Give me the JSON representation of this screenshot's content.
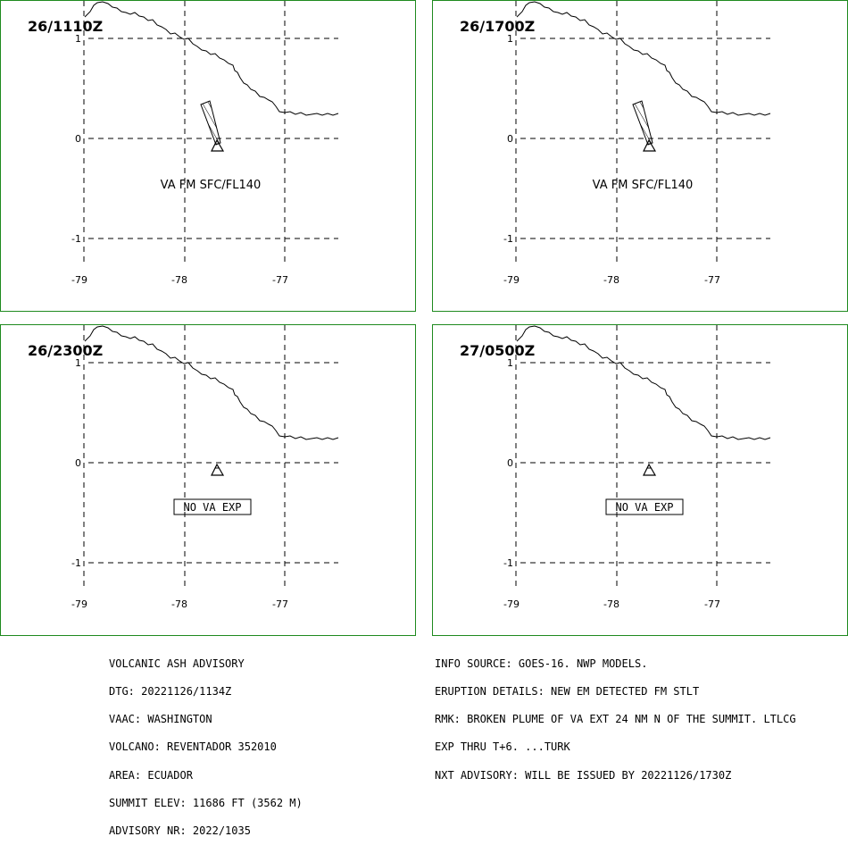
{
  "panels": [
    {
      "time": "26/1110Z",
      "lat_labels": [
        "1",
        "0",
        "-1"
      ],
      "lon_labels": [
        "-79",
        "-78",
        "-77"
      ],
      "plume": true,
      "label": "VA FM SFC/FL140",
      "boxed": false
    },
    {
      "time": "26/1700Z",
      "lat_labels": [
        "1",
        "0",
        "-1"
      ],
      "lon_labels": [
        "-79",
        "-78",
        "-77"
      ],
      "plume": true,
      "label": "VA FM SFC/FL140",
      "boxed": false
    },
    {
      "time": "26/2300Z",
      "lat_labels": [
        "1",
        "0",
        "-1"
      ],
      "lon_labels": [
        "-79",
        "-78",
        "-77"
      ],
      "plume": false,
      "label": "NO VA EXP",
      "boxed": true
    },
    {
      "time": "27/0500Z",
      "lat_labels": [
        "1",
        "0",
        "-1"
      ],
      "lon_labels": [
        "-79",
        "-78",
        "-77"
      ],
      "plume": false,
      "label": "NO VA EXP",
      "boxed": true
    }
  ],
  "advisory": {
    "left": [
      "VOLCANIC ASH ADVISORY",
      "DTG: 20221126/1134Z",
      "VAAC: WASHINGTON",
      "VOLCANO: REVENTADOR 352010",
      "AREA: ECUADOR",
      "SUMMIT ELEV: 11686 FT (3562 M)",
      "ADVISORY NR: 2022/1035"
    ],
    "right": [
      "INFO SOURCE: GOES-16. NWP MODELS.",
      "ERUPTION DETAILS: NEW EM DETECTED FM STLT",
      "RMK: BROKEN PLUME OF VA EXT 24 NM N OF THE SUMMIT. LTLCG",
      "EXP THRU T+6. ...TURK",
      "NXT ADVISORY: WILL BE ISSUED BY 20221126/1730Z"
    ]
  },
  "colors": {
    "border": "#1f8a1f",
    "lines": "#000000",
    "background": "#ffffff"
  },
  "volcano_marker": "volcano-triangle-icon"
}
